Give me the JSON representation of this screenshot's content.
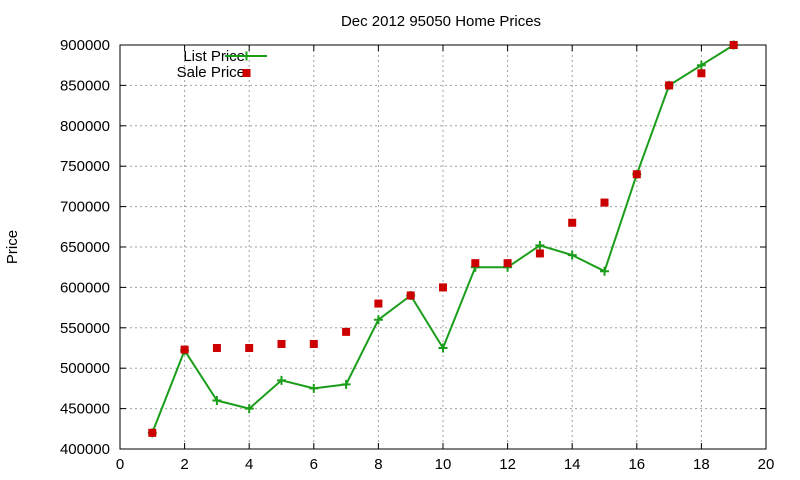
{
  "chart_data": {
    "type": "line",
    "title": "Dec 2012 95050 Home Prices",
    "xlabel": "",
    "ylabel": "Price",
    "xlim": [
      0,
      20
    ],
    "ylim": [
      400000,
      900000
    ],
    "x_ticks": [
      0,
      2,
      4,
      6,
      8,
      10,
      12,
      14,
      16,
      18,
      20
    ],
    "y_ticks": [
      400000,
      450000,
      500000,
      550000,
      600000,
      650000,
      700000,
      750000,
      800000,
      850000,
      900000
    ],
    "x_tick_labels": [
      "0",
      "2",
      "4",
      "6",
      "8",
      "10",
      "12",
      "14",
      "16",
      "18",
      "20"
    ],
    "y_tick_labels": [
      "400000",
      "450000",
      "500000",
      "550000",
      "600000",
      "650000",
      "700000",
      "750000",
      "800000",
      "850000",
      "900000"
    ],
    "grid": true,
    "legend_position": "top-left",
    "series": [
      {
        "name": "List Price",
        "style": "lines+points",
        "marker": "plus",
        "color": "#1a9e1a",
        "x": [
          1,
          2,
          3,
          4,
          5,
          6,
          7,
          8,
          9,
          10,
          11,
          12,
          13,
          14,
          15,
          16,
          17,
          18,
          19
        ],
        "y": [
          420000,
          522000,
          460000,
          450000,
          485000,
          475000,
          480000,
          560000,
          590000,
          525000,
          625000,
          625000,
          652000,
          640000,
          620000,
          740000,
          850000,
          875000,
          900000
        ]
      },
      {
        "name": "Sale Price",
        "style": "points",
        "marker": "square",
        "color": "#cc0000",
        "x": [
          1,
          2,
          3,
          4,
          5,
          6,
          7,
          8,
          9,
          10,
          11,
          12,
          13,
          14,
          15,
          16,
          17,
          18,
          19
        ],
        "y": [
          420000,
          523000,
          525000,
          525000,
          530000,
          530000,
          545000,
          580000,
          590000,
          600000,
          630000,
          630000,
          642000,
          680000,
          705000,
          740000,
          850000,
          865000,
          900000
        ]
      }
    ]
  }
}
